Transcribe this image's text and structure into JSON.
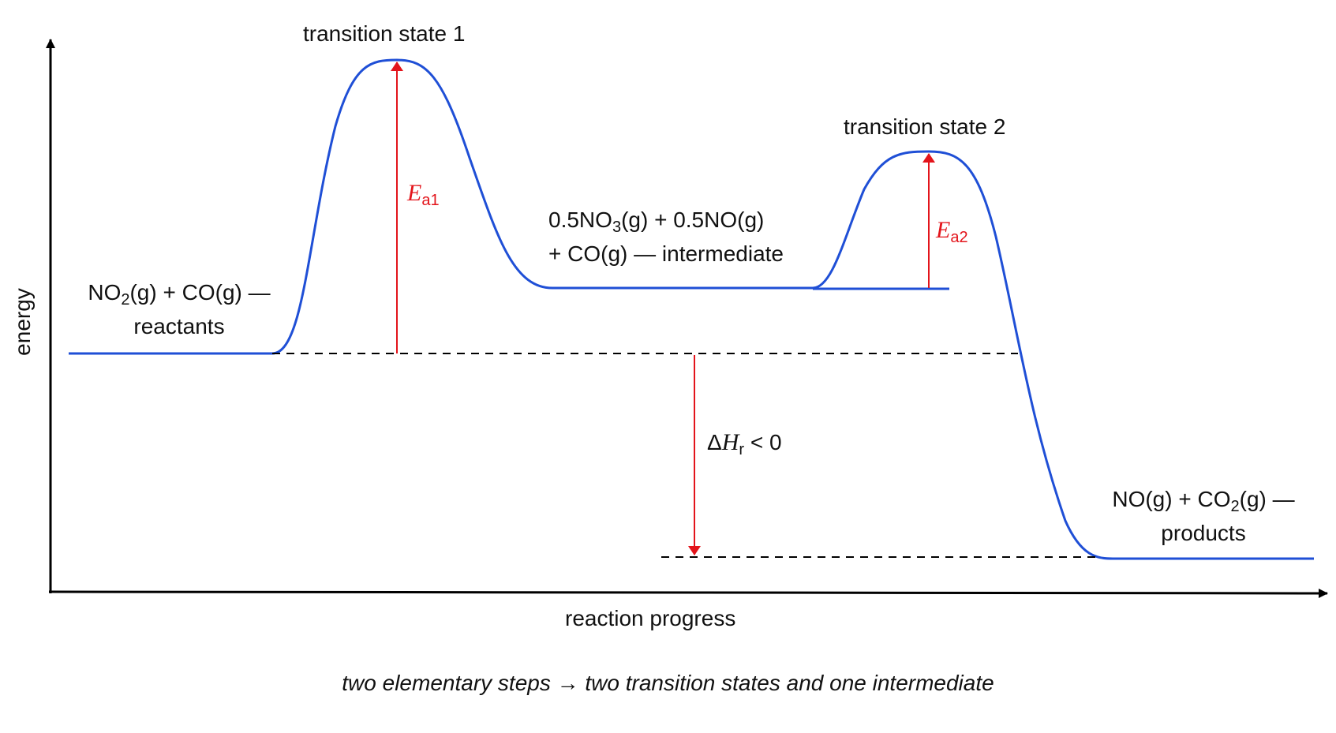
{
  "axes": {
    "y_label": "energy",
    "x_label": "reaction progress"
  },
  "states": {
    "ts1": "transition state 1",
    "ts2": "transition state 2",
    "reactants": {
      "line1_a": "NO",
      "line1_sub": "2",
      "line1_b": "(g) + CO(g) —",
      "line2": "reactants"
    },
    "intermediate": {
      "line1_a": "0.5NO",
      "line1_sub": "3",
      "line1_b": "(g) + 0.5NO(g)",
      "line2": "+ CO(g) — intermediate"
    },
    "products": {
      "line1_a": "NO(g) + CO",
      "line1_sub": "2",
      "line1_b": "(g) —",
      "line2": "products"
    }
  },
  "arrows": {
    "ea1": {
      "sym": "E",
      "sub": "a1"
    },
    "ea2": {
      "sym": "E",
      "sub": "a2"
    },
    "dh": {
      "delta": "Δ",
      "sym": "H",
      "sub": "r",
      "rel": " < 0"
    }
  },
  "caption": "two elementary steps → two transition states and one intermediate",
  "colors": {
    "curve": "#1f4fd6",
    "arrow": "#e3141b",
    "axis": "#000000"
  }
}
